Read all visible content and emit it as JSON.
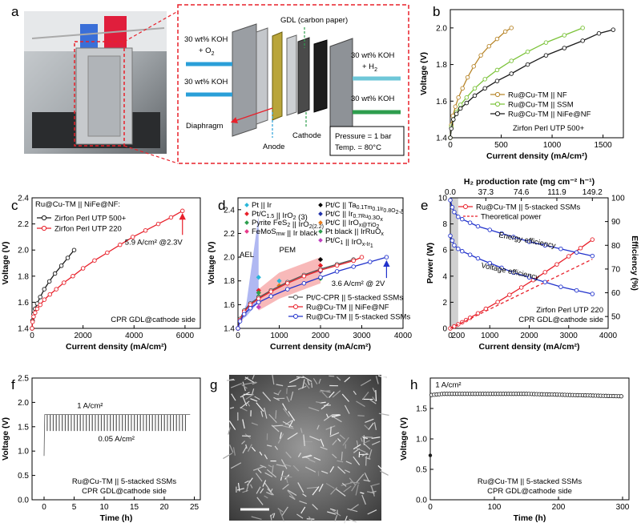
{
  "panel_labels": [
    "a",
    "b",
    "c",
    "d",
    "e",
    "f",
    "g",
    "h"
  ],
  "schematic": {
    "labels": {
      "koh_o2_in": "30 wt% KOH",
      "o2": "+ O",
      "o2_sub": "2",
      "koh_in": "30 wt% KOH",
      "gdl": "GDL (carbon paper)",
      "koh_h2_out": "30 wt% KOH",
      "h2": "+ H",
      "h2_sub": "2",
      "koh_out": "30 wt% KOH",
      "diaphragm": "Diaphragm",
      "anode": "Anode",
      "cathode": "Cathode",
      "pressure": "Pressure = 1 bar",
      "temp": "Temp. = 80°C"
    },
    "colors": {
      "red": "#e8202a",
      "green": "#2e9e4e",
      "blue": "#2a9fd8"
    }
  },
  "chart_data": [
    {
      "id": "b",
      "type": "line",
      "xlabel": "Current density (mA/cm²)",
      "ylabel": "Voltage (V)",
      "xlim": [
        0,
        1700
      ],
      "ylim": [
        1.4,
        2.1
      ],
      "xticks": [
        "0",
        "500",
        "1000",
        "1500"
      ],
      "yticks": [
        "1.4",
        "1.6",
        "1.8",
        "2.0"
      ],
      "annotation": "Zirfon Perl UTP 500+",
      "series": [
        {
          "name": "Ru@Cu-TM || NF",
          "color": "#b8862b",
          "x": [
            0,
            10,
            25,
            50,
            80,
            120,
            170,
            230,
            300,
            380,
            460,
            540,
            600
          ],
          "y": [
            1.4,
            1.47,
            1.52,
            1.57,
            1.62,
            1.67,
            1.73,
            1.79,
            1.85,
            1.9,
            1.94,
            1.98,
            2.0
          ]
        },
        {
          "name": "Ru@Cu-TM || SSM",
          "color": "#7cc33a",
          "x": [
            0,
            10,
            30,
            60,
            100,
            160,
            240,
            340,
            460,
            600,
            760,
            940,
            1120,
            1300
          ],
          "y": [
            1.4,
            1.46,
            1.5,
            1.54,
            1.58,
            1.62,
            1.67,
            1.72,
            1.77,
            1.82,
            1.87,
            1.92,
            1.96,
            2.0
          ]
        },
        {
          "name": "Ru@Cu-TM || NiFe@NF",
          "color": "#1a1a1a",
          "x": [
            0,
            10,
            30,
            60,
            100,
            160,
            240,
            340,
            460,
            600,
            760,
            940,
            1120,
            1300,
            1460,
            1600
          ],
          "y": [
            1.4,
            1.45,
            1.5,
            1.53,
            1.56,
            1.59,
            1.63,
            1.67,
            1.71,
            1.75,
            1.8,
            1.85,
            1.89,
            1.93,
            1.97,
            1.99
          ]
        }
      ]
    },
    {
      "id": "c",
      "type": "line",
      "title": "Ru@Cu-TM || NiFe@NF:",
      "xlabel": "Current density (mA/cm²)",
      "ylabel": "Voltage (V)",
      "xlim": [
        0,
        6600
      ],
      "ylim": [
        1.4,
        2.4
      ],
      "xticks": [
        "0",
        "2000",
        "4000",
        "6000"
      ],
      "yticks": [
        "1.4",
        "1.6",
        "1.8",
        "2.0",
        "2.2",
        "2.4"
      ],
      "annotation": "5.9 A/cm² @2.3V",
      "footer": "CPR GDL@cathode side",
      "series": [
        {
          "name": "Zirfon Perl UTP 500+",
          "color": "#1a1a1a",
          "x": [
            0,
            20,
            60,
            120,
            200,
            320,
            480,
            680,
            900,
            1150,
            1400,
            1650
          ],
          "y": [
            1.4,
            1.46,
            1.51,
            1.55,
            1.59,
            1.64,
            1.7,
            1.76,
            1.82,
            1.88,
            1.94,
            2.0
          ]
        },
        {
          "name": "Zirfon Perl UTP 220",
          "color": "#e8202a",
          "x": [
            0,
            20,
            60,
            120,
            200,
            320,
            480,
            700,
            950,
            1250,
            1600,
            2000,
            2450,
            2950,
            3450,
            3950,
            4450,
            4950,
            5450,
            5900
          ],
          "y": [
            1.4,
            1.45,
            1.49,
            1.52,
            1.55,
            1.58,
            1.62,
            1.66,
            1.7,
            1.75,
            1.8,
            1.86,
            1.92,
            1.98,
            2.04,
            2.1,
            2.15,
            2.2,
            2.25,
            2.3
          ]
        }
      ]
    },
    {
      "id": "d",
      "type": "line",
      "xlabel": "Current density (mA/cm²)",
      "ylabel": "Voltage (V)",
      "xlim": [
        0,
        4000
      ],
      "ylim": [
        1.4,
        2.5
      ],
      "xticks": [
        "0",
        "1000",
        "2000",
        "3000",
        "4000"
      ],
      "yticks": [
        "1.4",
        "1.6",
        "1.8",
        "2.0",
        "2.2",
        "2.4"
      ],
      "annotation": "3.6 A/cm² @ 2V",
      "region_labels": [
        "AEL",
        "PEM"
      ],
      "legend_refs": [
        {
          "label": "Pt || Ir",
          "color": "#29b6d9",
          "marker": "diamond"
        },
        {
          "label": "Pt/C_(1.5) || IrO_2 (3)",
          "color": "#e8202a",
          "marker": "diamond"
        },
        {
          "label": "Pyrite FeS_2 || IrO_2(2.2)",
          "color": "#2e9e4e",
          "marker": "triangle"
        },
        {
          "label": "FeMoS_(mw) || Ir black",
          "color": "#e83a8a",
          "marker": "triangle"
        },
        {
          "label": "Pt/C || Ta_0.1Tm_0.1Ir_0.8O_2-δ",
          "color": "#000000",
          "marker": "square"
        },
        {
          "label": "Pt/C || Ir_0.7Ru_0.3O_x",
          "color": "#2233aa",
          "marker": "triangle-down"
        },
        {
          "label": "Pt/C || IrO_x@TiO_2",
          "color": "#e87a1a",
          "marker": "triangle-right"
        },
        {
          "label": "Pt black || IrRuO_x",
          "color": "#2e9e4e",
          "marker": "star"
        },
        {
          "label": "Pt/C_(1) || IrO_x-Ir_(1)",
          "color": "#c040c0",
          "marker": "triangle-left"
        }
      ],
      "series": [
        {
          "name": "Pt/C-CPR || 5-stacked SSMs",
          "color": "#555555",
          "x": [
            0,
            50,
            150,
            300,
            500,
            800,
            1200,
            1600,
            2000,
            2400,
            2800
          ],
          "y": [
            1.4,
            1.48,
            1.55,
            1.61,
            1.66,
            1.72,
            1.79,
            1.85,
            1.9,
            1.94,
            1.98
          ]
        },
        {
          "name": "Ru@Cu-TM || NiFe@NF",
          "color": "#e8202a",
          "x": [
            0,
            50,
            150,
            300,
            500,
            800,
            1200,
            1600,
            2000,
            2400,
            2800,
            3000
          ],
          "y": [
            1.4,
            1.47,
            1.54,
            1.6,
            1.65,
            1.71,
            1.78,
            1.84,
            1.89,
            1.93,
            1.97,
            2.0
          ]
        },
        {
          "name": "Ru@Cu-TM || 5-stacked SSMs",
          "color": "#2233cc",
          "x": [
            0,
            50,
            150,
            300,
            500,
            800,
            1200,
            1600,
            2000,
            2400,
            2800,
            3200,
            3600
          ],
          "y": [
            1.4,
            1.46,
            1.52,
            1.57,
            1.62,
            1.67,
            1.73,
            1.78,
            1.83,
            1.88,
            1.92,
            1.96,
            2.0
          ]
        }
      ]
    },
    {
      "id": "e",
      "type": "line",
      "xlabel": "Current density (mA/cm²)",
      "ylabel": "Power (W)",
      "ylabel_right": "Efficiency (%)",
      "top_axis_label": "H₂ production rate (mg cm⁻² h⁻¹)",
      "top_ticks": [
        "0.0",
        "37.3",
        "74.6",
        "111.9",
        "149.2"
      ],
      "xlim": [
        0,
        4000
      ],
      "ylim": [
        0,
        10
      ],
      "ylim_right": [
        45,
        100
      ],
      "xticks": [
        "0",
        "1000",
        "2000",
        "3000",
        "4000"
      ],
      "extra_xtick": "200",
      "yticks": [
        "0",
        "2",
        "4",
        "6",
        "8",
        "10"
      ],
      "yticks_right": [
        "50",
        "60",
        "70",
        "80",
        "90",
        "100"
      ],
      "annotations": [
        "Energy efficiency",
        "Voltage efficiency",
        "Zirfon Perl UTP 220",
        "CPR GDL@cathode side"
      ],
      "series": [
        {
          "name": "Ru@Cu-TM || 5-stacked SSMs",
          "color": "#e8202a",
          "axis": "left",
          "x": [
            0,
            100,
            200,
            300,
            400,
            500,
            700,
            900,
            1200,
            1500,
            1800,
            2100,
            2400,
            2700,
            3000,
            3300,
            3600
          ],
          "y": [
            0,
            0.15,
            0.31,
            0.47,
            0.64,
            0.81,
            1.15,
            1.5,
            2.02,
            2.57,
            3.13,
            3.7,
            4.3,
            4.9,
            5.52,
            6.15,
            6.8
          ]
        },
        {
          "name": "Theoretical power",
          "color": "#e8202a",
          "axis": "left",
          "dashed": true,
          "x": [
            0,
            3600
          ],
          "y": [
            0,
            5.3
          ]
        },
        {
          "name": "Energy efficiency",
          "color": "#2233cc",
          "axis": "right",
          "x": [
            0,
            50,
            100,
            200,
            300,
            500,
            700,
            1000,
            1300,
            1600,
            2000,
            2400,
            2800,
            3200,
            3600
          ],
          "y": [
            99,
            96,
            94,
            92,
            91,
            89.5,
            88,
            86.5,
            85,
            83.5,
            81.5,
            80,
            78.5,
            77,
            75.5
          ]
        },
        {
          "name": "Voltage efficiency",
          "color": "#2233cc",
          "axis": "right",
          "x": [
            0,
            50,
            100,
            200,
            300,
            500,
            700,
            1000,
            1300,
            1600,
            2000,
            2400,
            2800,
            3200,
            3600
          ],
          "y": [
            84,
            82,
            80,
            78.5,
            77.5,
            76,
            74.5,
            72.5,
            70.5,
            68.5,
            66.5,
            64.5,
            62.5,
            61,
            59.5
          ]
        }
      ]
    },
    {
      "id": "f",
      "type": "line",
      "xlabel": "Time (h)",
      "ylabel": "Voltage (V)",
      "xlim": [
        -2,
        26
      ],
      "ylim": [
        0,
        2.5
      ],
      "xticks": [
        "0",
        "5",
        "10",
        "15",
        "20",
        "25"
      ],
      "yticks": [
        "0.0",
        "0.5",
        "1.0",
        "1.5",
        "2.0",
        "2.5"
      ],
      "annotations": [
        "1 A/cm²",
        "0.05 A/cm²",
        "Ru@Cu-TM || 5-stacked SSMs",
        "CPR GDL@cathode side"
      ],
      "high_v": 1.75,
      "low_v": 1.42,
      "start_v": 0.9,
      "color": "#555555"
    },
    {
      "id": "h",
      "type": "scatter",
      "xlabel": "Time (h)",
      "ylabel": "Voltage (V)",
      "xlim": [
        0,
        310
      ],
      "ylim": [
        0,
        2.0
      ],
      "xticks": [
        "0",
        "100",
        "200",
        "300"
      ],
      "yticks": [
        "0.0",
        "0.5",
        "1.0",
        "1.5"
      ],
      "annotations": [
        "1 A/cm²",
        "Ru@Cu-TM || 5-stacked SSMs",
        "CPR GDL@cathode side"
      ],
      "start_v": 0.73,
      "plateau": 1.74,
      "end_v": 1.7,
      "color": "#1a1a1a"
    }
  ]
}
